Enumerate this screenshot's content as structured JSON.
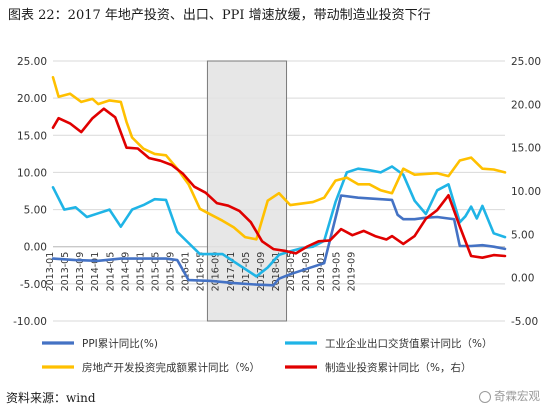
{
  "figure": {
    "title": "图表 22：2017 年地产投资、出口、PPI 增速放缓，带动制造业投资下行",
    "source": "资料来源：wind",
    "watermark": "奇霖宏观",
    "colors": {
      "highlight_fill": "#e3e3e3",
      "highlight_stroke": "#7a7a7a",
      "grid": "#d9d9d9"
    }
  },
  "chart_data": {
    "type": "line",
    "xlabel": "",
    "ylabel": "",
    "grid": true,
    "legend_position": "bottom",
    "x_index_range": [
      0,
      80
    ],
    "ylim_left": [
      -10,
      25
    ],
    "ylim_right": [
      -5,
      25
    ],
    "yticks_left": [
      "-10.00",
      "-5.00",
      "0.00",
      "5.00",
      "10.00",
      "15.00",
      "20.00",
      "25.00"
    ],
    "yticks_right": [
      "-5.00",
      "0.00",
      "5.00",
      "10.00",
      "15.00",
      "20.00",
      "25.00"
    ],
    "x_tick_labels": [
      "2013-01",
      "2013-05",
      "2013-09",
      "2014-01",
      "2014-05",
      "2014-09",
      "2015-01",
      "2015-05",
      "2015-09",
      "2016-01",
      "2016-05",
      "2016-09",
      "2017-01",
      "2017-05",
      "2017-09",
      "2018-01",
      "2018-05",
      "2018-09",
      "2019-01",
      "2019-05",
      "2019-09"
    ],
    "highlight_region": {
      "from": "2016-06",
      "to": "2018-03"
    },
    "series": [
      {
        "name": "PPI累计同比(%)",
        "axis": "left",
        "color": "#4472c4",
        "values": [
          [
            0,
            -1.6
          ],
          [
            4,
            -1.8
          ],
          [
            8,
            -1.9
          ],
          [
            12,
            -1.6
          ],
          [
            16,
            -1.6
          ],
          [
            20,
            -1.6
          ],
          [
            22,
            -1.8
          ],
          [
            24,
            -4.5
          ],
          [
            28,
            -4.6
          ],
          [
            32,
            -4.9
          ],
          [
            36,
            -5.1
          ],
          [
            39,
            -5.2
          ],
          [
            40,
            -4.3
          ],
          [
            42,
            -3.7
          ],
          [
            46,
            -2.7
          ],
          [
            48,
            -2.2
          ],
          [
            51,
            6.9
          ],
          [
            54,
            6.6
          ],
          [
            58,
            6.4
          ],
          [
            60,
            6.3
          ],
          [
            61,
            4.3
          ],
          [
            62,
            3.7
          ],
          [
            64,
            3.7
          ],
          [
            66,
            3.9
          ],
          [
            68,
            4.0
          ],
          [
            70,
            3.8
          ],
          [
            71,
            3.7
          ],
          [
            72,
            0.1
          ],
          [
            74,
            0.1
          ],
          [
            76,
            0.2
          ],
          [
            78,
            0.0
          ],
          [
            80,
            -0.3
          ]
        ]
      },
      {
        "name": "工业企业出口交货值累计同比（%）",
        "axis": "left",
        "color": "#1fb4e6",
        "values": [
          [
            0,
            8.0
          ],
          [
            2,
            5.0
          ],
          [
            4,
            5.3
          ],
          [
            6,
            4.0
          ],
          [
            8,
            4.5
          ],
          [
            10,
            5.0
          ],
          [
            12,
            2.7
          ],
          [
            14,
            5.0
          ],
          [
            16,
            5.6
          ],
          [
            18,
            6.4
          ],
          [
            20,
            6.3
          ],
          [
            22,
            2.0
          ],
          [
            24,
            0.5
          ],
          [
            26,
            -1.0
          ],
          [
            30,
            -1.0
          ],
          [
            32,
            -2.0
          ],
          [
            36,
            -4.0
          ],
          [
            38,
            -2.8
          ],
          [
            40,
            -1.1
          ],
          [
            42,
            -0.6
          ],
          [
            44,
            -0.2
          ],
          [
            46,
            0.0
          ],
          [
            48,
            0.8
          ],
          [
            50,
            6.0
          ],
          [
            52,
            10.0
          ],
          [
            54,
            10.5
          ],
          [
            56,
            10.3
          ],
          [
            58,
            10.0
          ],
          [
            60,
            10.8
          ],
          [
            62,
            9.7
          ],
          [
            64,
            6.2
          ],
          [
            66,
            4.4
          ],
          [
            68,
            7.6
          ],
          [
            70,
            8.4
          ],
          [
            72,
            3.3
          ],
          [
            73,
            4.1
          ],
          [
            74,
            5.4
          ],
          [
            75,
            3.8
          ],
          [
            76,
            5.5
          ],
          [
            78,
            1.8
          ],
          [
            80,
            1.3
          ]
        ]
      },
      {
        "name": "房地产开发投资完成额累计同比（%）",
        "axis": "left",
        "color": "#ffc000",
        "values": [
          [
            0,
            22.8
          ],
          [
            1,
            20.2
          ],
          [
            3,
            20.6
          ],
          [
            5,
            19.5
          ],
          [
            7,
            19.9
          ],
          [
            8,
            19.2
          ],
          [
            10,
            19.7
          ],
          [
            12,
            19.5
          ],
          [
            13,
            16.8
          ],
          [
            14,
            14.7
          ],
          [
            16,
            13.2
          ],
          [
            18,
            12.5
          ],
          [
            20,
            12.3
          ],
          [
            22,
            10.5
          ],
          [
            24,
            8.4
          ],
          [
            26,
            5.1
          ],
          [
            28,
            4.3
          ],
          [
            30,
            3.5
          ],
          [
            32,
            2.6
          ],
          [
            34,
            1.3
          ],
          [
            36,
            1.0
          ],
          [
            38,
            6.2
          ],
          [
            40,
            7.2
          ],
          [
            42,
            5.6
          ],
          [
            44,
            5.8
          ],
          [
            46,
            6.0
          ],
          [
            48,
            6.6
          ],
          [
            50,
            8.9
          ],
          [
            52,
            9.3
          ],
          [
            54,
            8.4
          ],
          [
            56,
            8.4
          ],
          [
            58,
            7.6
          ],
          [
            60,
            7.2
          ],
          [
            62,
            10.5
          ],
          [
            64,
            9.7
          ],
          [
            66,
            9.8
          ],
          [
            68,
            9.9
          ],
          [
            70,
            9.5
          ],
          [
            72,
            11.6
          ],
          [
            74,
            12.0
          ],
          [
            76,
            10.5
          ],
          [
            78,
            10.4
          ],
          [
            80,
            10.0
          ]
        ]
      },
      {
        "name": "制造业投资累计同比（%，右）",
        "axis": "right",
        "color": "#e00000",
        "values": [
          [
            0,
            17.3
          ],
          [
            1,
            18.4
          ],
          [
            3,
            17.8
          ],
          [
            5,
            16.8
          ],
          [
            7,
            18.4
          ],
          [
            9,
            19.5
          ],
          [
            11,
            18.5
          ],
          [
            13,
            15.0
          ],
          [
            15,
            14.9
          ],
          [
            17,
            13.8
          ],
          [
            19,
            13.5
          ],
          [
            21,
            13.0
          ],
          [
            23,
            12.0
          ],
          [
            25,
            10.5
          ],
          [
            27,
            9.8
          ],
          [
            29,
            8.6
          ],
          [
            31,
            8.3
          ],
          [
            33,
            7.7
          ],
          [
            35,
            6.4
          ],
          [
            37,
            4.2
          ],
          [
            39,
            3.3
          ],
          [
            41,
            3.1
          ],
          [
            43,
            2.8
          ],
          [
            45,
            3.6
          ],
          [
            47,
            4.2
          ],
          [
            49,
            4.3
          ],
          [
            51,
            5.6
          ],
          [
            53,
            4.9
          ],
          [
            55,
            5.4
          ],
          [
            57,
            4.8
          ],
          [
            59,
            4.4
          ],
          [
            60,
            4.8
          ],
          [
            62,
            3.9
          ],
          [
            64,
            4.8
          ],
          [
            66,
            6.8
          ],
          [
            68,
            7.8
          ],
          [
            70,
            9.5
          ],
          [
            72,
            5.9
          ],
          [
            74,
            2.5
          ],
          [
            76,
            2.3
          ],
          [
            78,
            2.6
          ],
          [
            80,
            2.5
          ]
        ]
      }
    ]
  }
}
